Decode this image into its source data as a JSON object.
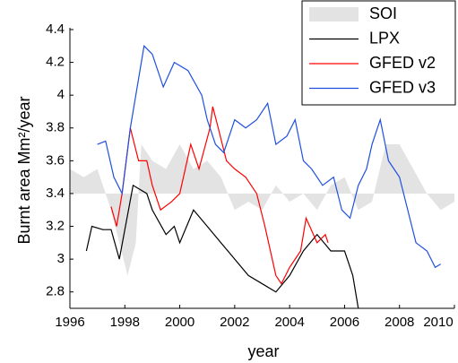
{
  "chart_data": {
    "type": "line",
    "xlabel": "year",
    "ylabel": "Burnt area Mm²/year",
    "xlim": [
      1996,
      2010
    ],
    "xticks": [
      1996,
      1998,
      2000,
      2002,
      2004,
      2006,
      2008,
      2010
    ],
    "ylim": [
      2.7,
      4.4
    ],
    "yticks": [
      2.8,
      3,
      3.2,
      3.4,
      3.6,
      3.8,
      4,
      4.2,
      4.4
    ],
    "grid": false,
    "legend": "upper right",
    "baseline": 3.4,
    "series": [
      {
        "name": "SOI",
        "color": "#e3e3e3",
        "style": "area",
        "x": [
          1996,
          1996.5,
          1997,
          1997.5,
          1997.8,
          1998.1,
          1998.4,
          1998.6,
          1999,
          1999.5,
          2000,
          2000.5,
          2001,
          2001.5,
          2002,
          2002.5,
          2003,
          2003.5,
          2004,
          2004.5,
          2005,
          2005.5,
          2006,
          2006.5,
          2007,
          2007.5,
          2008,
          2008.5,
          2009,
          2009.5,
          2010
        ],
        "values": [
          3.55,
          3.5,
          3.55,
          3.3,
          3.1,
          2.9,
          3.1,
          3.7,
          3.6,
          3.55,
          3.7,
          3.55,
          3.6,
          3.5,
          3.3,
          3.35,
          3.3,
          3.45,
          3.35,
          3.4,
          3.3,
          3.45,
          3.5,
          3.3,
          3.35,
          3.7,
          3.7,
          3.55,
          3.4,
          3.3,
          3.35
        ]
      },
      {
        "name": "LPX",
        "color": "#000000",
        "x": [
          1996.6,
          1996.8,
          1997.2,
          1997.5,
          1997.8,
          1998.3,
          1998.8,
          1999,
          1999.5,
          1999.8,
          2000,
          2000.5,
          2001,
          2001.5,
          2002,
          2002.5,
          2003,
          2003.5,
          2004,
          2004.5,
          2005,
          2005.5,
          2006,
          2006.3,
          2006.5
        ],
        "values": [
          3.05,
          3.2,
          3.18,
          3.18,
          3.0,
          3.45,
          3.4,
          3.3,
          3.15,
          3.2,
          3.1,
          3.3,
          3.2,
          3.1,
          3.0,
          2.9,
          2.85,
          2.8,
          2.9,
          3.05,
          3.15,
          3.05,
          3.05,
          2.9,
          2.7
        ]
      },
      {
        "name": "GFED v2",
        "color": "#ff0000",
        "x": [
          1997.5,
          1997.7,
          1997.9,
          1998.2,
          1998.5,
          1998.8,
          1999,
          1999.3,
          1999.7,
          2000,
          2000.4,
          2000.7,
          2001.1,
          2001.2,
          2001.4,
          2001.7,
          2002,
          2002.4,
          2002.8,
          2003.1,
          2003.5,
          2003.7,
          2004,
          2004.4,
          2004.6,
          2005,
          2005.3,
          2005.4
        ],
        "values": [
          3.32,
          3.2,
          3.4,
          3.8,
          3.6,
          3.6,
          3.45,
          3.3,
          3.35,
          3.4,
          3.7,
          3.55,
          3.8,
          3.93,
          3.8,
          3.6,
          3.55,
          3.5,
          3.4,
          3.2,
          2.9,
          2.85,
          2.95,
          3.05,
          3.25,
          3.1,
          3.15,
          3.1
        ]
      },
      {
        "name": "GFED v3",
        "color": "#1f4fe0",
        "x": [
          1997,
          1997.3,
          1997.6,
          1997.9,
          1998.2,
          1998.5,
          1998.7,
          1999,
          1999.4,
          1999.8,
          2000.3,
          2000.8,
          2001,
          2001.3,
          2001.6,
          2002,
          2002.4,
          2002.8,
          2003.2,
          2003.5,
          2003.9,
          2004.2,
          2004.5,
          2004.8,
          2005.2,
          2005.6,
          2005.9,
          2006.2,
          2006.5,
          2006.8,
          2007,
          2007.3,
          2007.6,
          2008,
          2008.3,
          2008.6,
          2009,
          2009.3,
          2009.5
        ],
        "values": [
          3.7,
          3.72,
          3.5,
          3.4,
          3.8,
          4.1,
          4.3,
          4.25,
          4.05,
          4.2,
          4.15,
          4.0,
          3.85,
          3.7,
          3.65,
          3.85,
          3.8,
          3.85,
          3.95,
          3.7,
          3.75,
          3.85,
          3.6,
          3.55,
          3.45,
          3.5,
          3.3,
          3.25,
          3.45,
          3.55,
          3.7,
          3.85,
          3.6,
          3.5,
          3.3,
          3.1,
          3.05,
          2.95,
          2.97
        ]
      }
    ]
  }
}
